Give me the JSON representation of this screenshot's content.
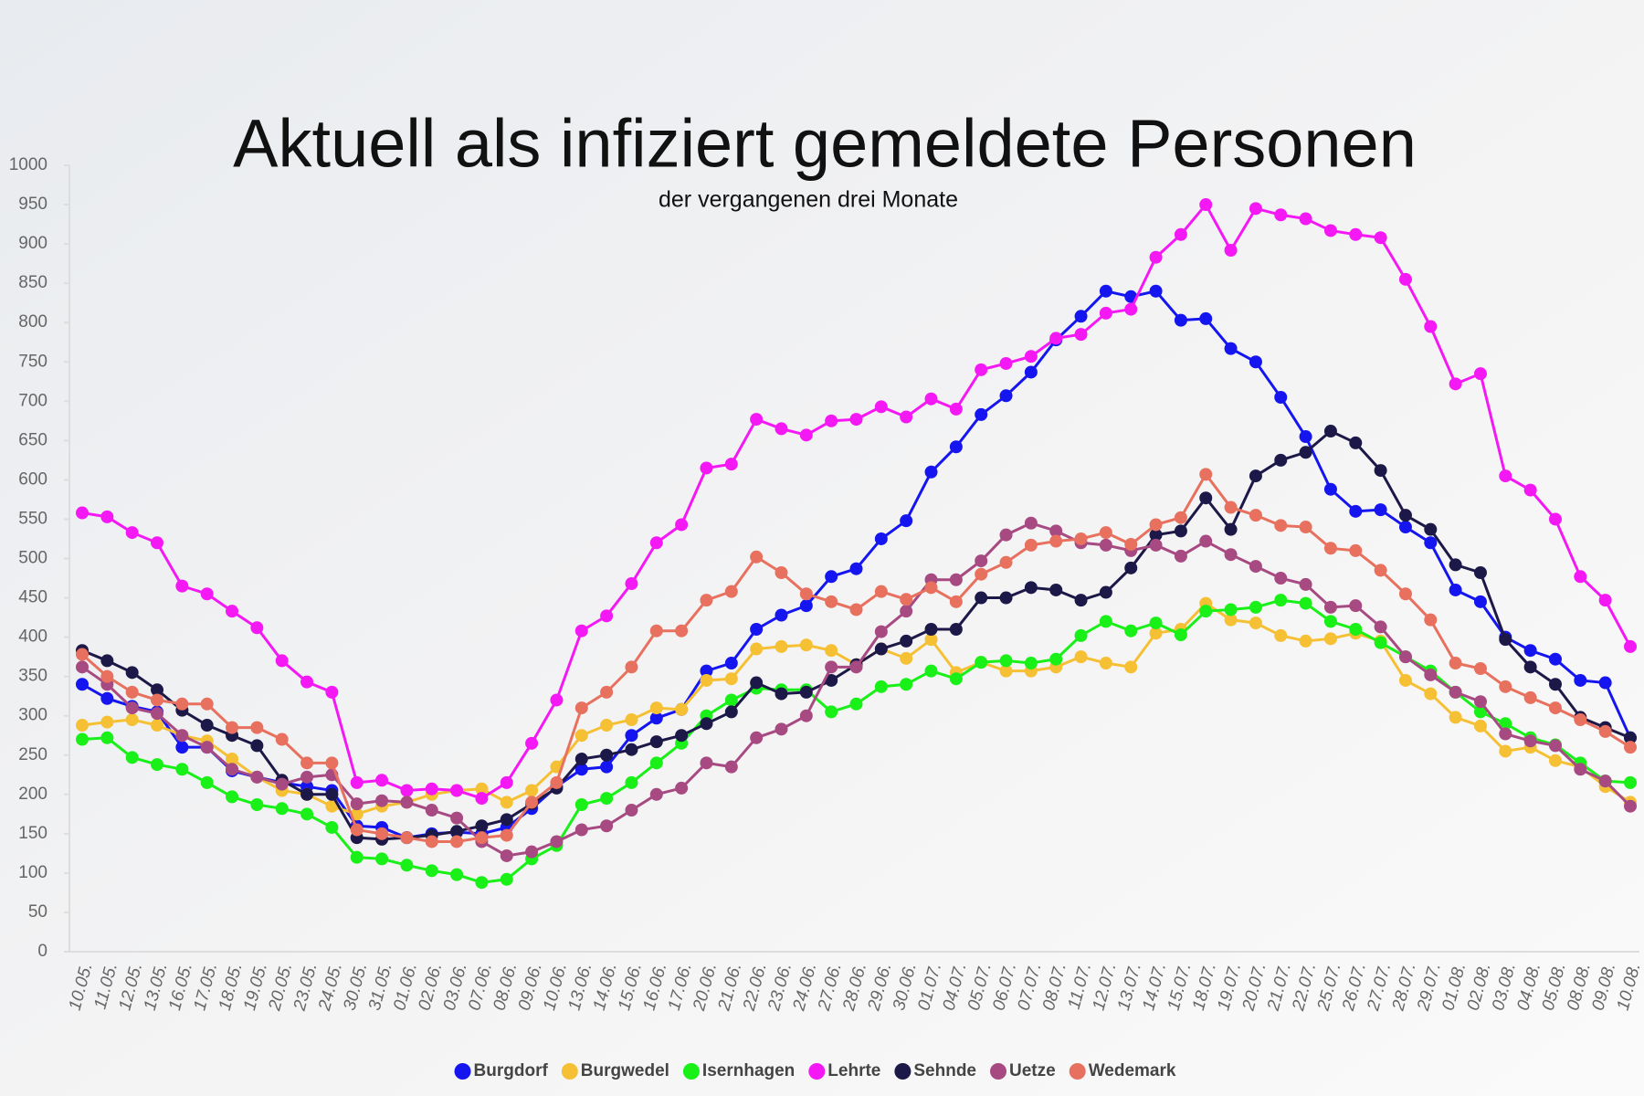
{
  "chart_data": {
    "type": "line",
    "title": "Aktuell als infiziert gemeldete Personen",
    "subtitle": "der vergangenen drei Monate",
    "categories": [
      "10.05.",
      "11.05.",
      "12.05.",
      "13.05.",
      "16.05.",
      "17.05.",
      "18.05.",
      "19.05.",
      "20.05.",
      "23.05.",
      "24.05.",
      "30.05.",
      "31.05.",
      "01.06.",
      "02.06.",
      "03.06.",
      "07.06.",
      "08.06.",
      "09.06.",
      "10.06.",
      "13.06.",
      "14.06.",
      "15.06.",
      "16.06.",
      "17.06.",
      "20.06.",
      "21.06.",
      "22.06.",
      "23.06.",
      "24.06.",
      "27.06.",
      "28.06.",
      "29.06.",
      "30.06.",
      "01.07.",
      "04.07.",
      "05.07.",
      "06.07.",
      "07.07.",
      "08.07.",
      "11.07.",
      "12.07.",
      "13.07.",
      "14.07.",
      "15.07.",
      "18.07.",
      "19.07.",
      "20.07.",
      "21.07.",
      "22.07.",
      "25.07.",
      "26.07.",
      "27.07.",
      "28.07.",
      "29.07.",
      "01.08.",
      "02.08.",
      "03.08.",
      "04.08.",
      "05.08.",
      "08.08.",
      "09.08.",
      "10.08."
    ],
    "series": [
      {
        "name": "Burgdorf",
        "color": "#1515f0",
        "values": [
          340,
          322,
          312,
          305,
          260,
          260,
          230,
          222,
          215,
          210,
          205,
          160,
          158,
          145,
          150,
          152,
          150,
          158,
          182,
          210,
          232,
          235,
          275,
          297,
          308,
          357,
          367,
          410,
          428,
          440,
          477,
          487,
          525,
          548,
          610,
          642,
          683,
          707,
          737,
          778,
          808,
          840,
          833,
          840,
          803,
          805,
          767,
          750,
          705,
          655,
          588,
          560,
          562,
          540,
          520,
          460,
          445,
          400,
          383,
          372,
          345,
          342,
          272
        ]
      },
      {
        "name": "Burgwedel",
        "color": "#f5c033",
        "values": [
          288,
          292,
          295,
          288,
          275,
          268,
          245,
          222,
          205,
          200,
          185,
          175,
          185,
          190,
          200,
          205,
          207,
          190,
          205,
          235,
          275,
          288,
          295,
          310,
          308,
          345,
          347,
          385,
          388,
          390,
          383,
          365,
          385,
          373,
          397,
          355,
          368,
          357,
          357,
          362,
          375,
          367,
          362,
          405,
          410,
          443,
          422,
          418,
          402,
          395,
          398,
          405,
          395,
          345,
          328,
          298,
          287,
          255,
          260,
          243,
          235,
          210,
          190
        ]
      },
      {
        "name": "Isernhagen",
        "color": "#18f018",
        "values": [
          270,
          272,
          247,
          238,
          232,
          215,
          197,
          187,
          182,
          175,
          158,
          120,
          118,
          110,
          103,
          98,
          88,
          92,
          118,
          135,
          187,
          195,
          215,
          240,
          265,
          300,
          320,
          335,
          333,
          333,
          305,
          315,
          337,
          340,
          357,
          347,
          368,
          370,
          367,
          372,
          402,
          420,
          408,
          418,
          403,
          433,
          435,
          438,
          447,
          443,
          420,
          410,
          393,
          375,
          357,
          330,
          305,
          290,
          272,
          263,
          240,
          217,
          215
        ]
      },
      {
        "name": "Lehrte",
        "color": "#f418f4",
        "values": [
          558,
          553,
          533,
          520,
          465,
          455,
          433,
          412,
          370,
          343,
          330,
          215,
          218,
          205,
          207,
          205,
          195,
          215,
          265,
          320,
          408,
          427,
          468,
          520,
          543,
          615,
          620,
          677,
          665,
          657,
          675,
          677,
          693,
          680,
          703,
          690,
          740,
          748,
          757,
          780,
          785,
          812,
          817,
          883,
          912,
          950,
          892,
          945,
          937,
          932,
          917,
          912,
          908,
          855,
          795,
          722,
          735,
          605,
          587,
          550,
          477,
          447,
          388
        ]
      },
      {
        "name": "Sehnde",
        "color": "#1c1848",
        "values": [
          383,
          370,
          355,
          333,
          307,
          288,
          275,
          262,
          218,
          200,
          200,
          145,
          143,
          145,
          148,
          153,
          160,
          168,
          188,
          208,
          245,
          250,
          257,
          267,
          275,
          290,
          305,
          342,
          328,
          330,
          345,
          365,
          385,
          395,
          410,
          410,
          450,
          450,
          463,
          460,
          447,
          457,
          488,
          530,
          535,
          577,
          537,
          605,
          625,
          635,
          662,
          647,
          612,
          555,
          537,
          492,
          482,
          397,
          362,
          340,
          298,
          285,
          272
        ]
      },
      {
        "name": "Uetze",
        "color": "#a84a82",
        "values": [
          362,
          340,
          310,
          303,
          275,
          260,
          232,
          222,
          213,
          222,
          225,
          188,
          192,
          190,
          180,
          170,
          140,
          122,
          127,
          140,
          155,
          160,
          180,
          200,
          208,
          240,
          235,
          272,
          283,
          300,
          362,
          362,
          407,
          433,
          473,
          473,
          497,
          530,
          545,
          535,
          520,
          517,
          510,
          517,
          503,
          522,
          505,
          490,
          475,
          467,
          438,
          440,
          413,
          375,
          352,
          330,
          318,
          277,
          268,
          262,
          232,
          217,
          185
        ]
      },
      {
        "name": "Wedemark",
        "color": "#e8705e",
        "values": [
          378,
          350,
          330,
          320,
          315,
          315,
          285,
          285,
          270,
          240,
          240,
          155,
          150,
          145,
          140,
          140,
          145,
          148,
          190,
          215,
          310,
          330,
          362,
          408,
          408,
          447,
          458,
          502,
          482,
          455,
          445,
          435,
          458,
          448,
          463,
          445,
          480,
          495,
          517,
          522,
          525,
          533,
          518,
          543,
          552,
          607,
          565,
          555,
          542,
          540,
          513,
          510,
          485,
          455,
          422,
          367,
          360,
          337,
          323,
          310,
          295,
          280,
          260
        ]
      }
    ],
    "ylim": [
      0,
      1000
    ],
    "yticks": [
      0,
      50,
      100,
      150,
      200,
      250,
      300,
      350,
      400,
      450,
      500,
      550,
      600,
      650,
      700,
      750,
      800,
      850,
      900,
      950,
      1000
    ]
  }
}
